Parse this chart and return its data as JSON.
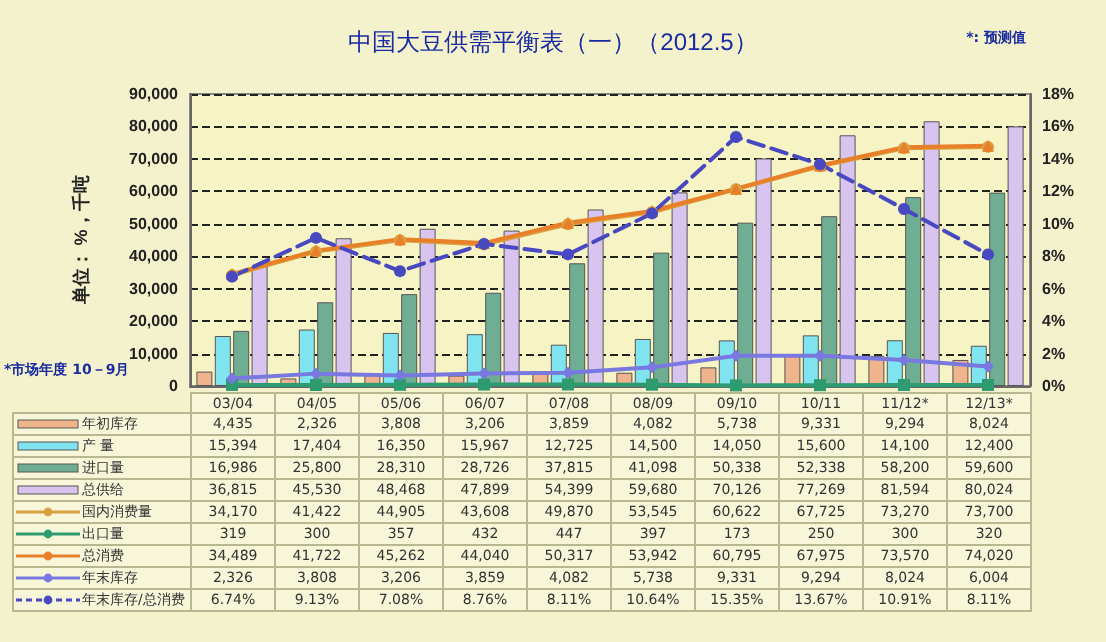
{
  "chart_data": {
    "type": "bar",
    "title": "中国大豆供需平衡表（一）（2012.5）",
    "ylabel": "单位： %，千吨",
    "annotations": [
      "*市场年度 10－9月",
      "*: 预测值"
    ],
    "categories": [
      "03/04",
      "04/05",
      "05/06",
      "06/07",
      "07/08",
      "08/09",
      "09/10",
      "10/11",
      "11/12*",
      "12/13*"
    ],
    "series": [
      {
        "name": "年初库存",
        "color": "#f0b48c",
        "values": [
          4435,
          2326,
          3808,
          3206,
          3859,
          4082,
          5738,
          9331,
          9294,
          8024
        ],
        "value_labels": [
          "4,435",
          "2,326",
          "3,808",
          "3,206",
          "3,859",
          "4,082",
          "5,738",
          "9,331",
          "9,294",
          "8,024"
        ]
      },
      {
        "name": "产 量",
        "color": "#80e4f0",
        "values": [
          15394,
          17404,
          16350,
          15967,
          12725,
          14500,
          14050,
          15600,
          14100,
          12400
        ],
        "value_labels": [
          "15,394",
          "17,404",
          "16,350",
          "15,967",
          "12,725",
          "14,500",
          "14,050",
          "15,600",
          "14,100",
          "12,400"
        ]
      },
      {
        "name": "进口量",
        "color": "#6fae92",
        "values": [
          16986,
          25800,
          28310,
          28726,
          37815,
          41098,
          50338,
          52338,
          58200,
          59600
        ],
        "value_labels": [
          "16,986",
          "25,800",
          "28,310",
          "28,726",
          "37,815",
          "41,098",
          "50,338",
          "52,338",
          "58,200",
          "59,600"
        ]
      },
      {
        "name": "总供给",
        "color": "#d9c4f0",
        "values": [
          36815,
          45530,
          48468,
          47899,
          54399,
          59680,
          70126,
          77269,
          81594,
          80024
        ],
        "value_labels": [
          "36,815",
          "45,530",
          "48,468",
          "47,899",
          "54,399",
          "59,680",
          "70,126",
          "77,269",
          "81,594",
          "80,024"
        ]
      },
      {
        "name": "国内消费量",
        "type": "line",
        "color": "#d8a040",
        "marker": "circle",
        "line_style": "solid",
        "values": [
          34170,
          41422,
          44905,
          43608,
          49870,
          53545,
          60622,
          67725,
          73270,
          73700
        ],
        "value_labels": [
          "34,170",
          "41,422",
          "44,905",
          "43,608",
          "49,870",
          "53,545",
          "60,622",
          "67,725",
          "73,270",
          "73,700"
        ]
      },
      {
        "name": "出口量",
        "type": "line",
        "color": "#2e9a70",
        "marker": "square",
        "line_style": "solid",
        "values": [
          319,
          300,
          357,
          432,
          447,
          397,
          173,
          250,
          300,
          320
        ],
        "value_labels": [
          "319",
          "300",
          "357",
          "432",
          "447",
          "397",
          "173",
          "250",
          "300",
          "320"
        ]
      },
      {
        "name": "总消费",
        "type": "line",
        "color": "#e8802a",
        "marker": "triangle",
        "line_style": "solid",
        "values": [
          34489,
          41722,
          45262,
          44040,
          50317,
          53942,
          60795,
          67975,
          73570,
          74020
        ],
        "value_labels": [
          "34,489",
          "41,722",
          "45,262",
          "44,040",
          "50,317",
          "53,942",
          "60,795",
          "67,975",
          "73,570",
          "74,020"
        ]
      },
      {
        "name": "年末库存",
        "type": "line",
        "color": "#7878e0",
        "marker": "diamond",
        "line_style": "solid",
        "values": [
          2326,
          3808,
          3206,
          3859,
          4082,
          5738,
          9331,
          9294,
          8024,
          6004
        ],
        "value_labels": [
          "2,326",
          "3,808",
          "3,206",
          "3,859",
          "4,082",
          "5,738",
          "9,331",
          "9,294",
          "8,024",
          "6,004"
        ]
      },
      {
        "name": "年末库存/总消费",
        "type": "line",
        "axis": "y2",
        "color": "#4848c0",
        "marker": "circle",
        "line_style": "dashed",
        "values": [
          6.74,
          9.13,
          7.08,
          8.76,
          8.11,
          10.64,
          15.35,
          13.67,
          10.91,
          8.11
        ],
        "value_labels": [
          "6.74%",
          "9.13%",
          "7.08%",
          "8.76%",
          "8.11%",
          "10.64%",
          "15.35%",
          "13.67%",
          "10.91%",
          "8.11%"
        ]
      }
    ],
    "ylim": [
      0,
      90000
    ],
    "yticks": [
      {
        "value": 0,
        "label": "0"
      },
      {
        "value": 10000,
        "label": "10,000"
      },
      {
        "value": 20000,
        "label": "20,000"
      },
      {
        "value": 30000,
        "label": "30,000"
      },
      {
        "value": 40000,
        "label": "40,000"
      },
      {
        "value": 50000,
        "label": "50,000"
      },
      {
        "value": 60000,
        "label": "60,000"
      },
      {
        "value": 70000,
        "label": "70,000"
      },
      {
        "value": 80000,
        "label": "80,000"
      },
      {
        "value": 90000,
        "label": "90,000"
      }
    ],
    "y2lim": [
      0,
      18
    ],
    "y2ticks": [
      {
        "value": 0,
        "label": "0%"
      },
      {
        "value": 2,
        "label": "2%"
      },
      {
        "value": 4,
        "label": "4%"
      },
      {
        "value": 6,
        "label": "6%"
      },
      {
        "value": 8,
        "label": "8%"
      },
      {
        "value": 10,
        "label": "10%"
      },
      {
        "value": 12,
        "label": "12%"
      },
      {
        "value": 14,
        "label": "14%"
      },
      {
        "value": 16,
        "label": "16%"
      },
      {
        "value": 18,
        "label": "18%"
      }
    ],
    "grid": "y",
    "legend": "bottom"
  }
}
